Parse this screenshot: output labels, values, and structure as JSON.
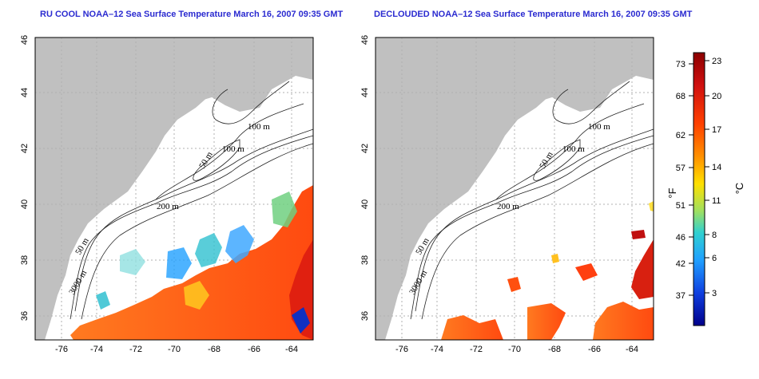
{
  "panels": [
    {
      "title": "RU COOL NOAA–12 Sea Surface Temperature March 16, 2007 09:35 GMT",
      "contour_labels": [
        "100 m",
        "100 m",
        "50 m",
        "200 m",
        "50 m",
        "3000 m"
      ]
    },
    {
      "title": "DECLOUDED NOAA–12 Sea Surface Temperature March 16, 2007 09:35 GMT",
      "contour_labels": [
        "100 m",
        "100 m",
        "50 m",
        "200 m",
        "50 m",
        "3000 m"
      ]
    }
  ],
  "axes": {
    "x_ticks": [
      "-76",
      "-74",
      "-72",
      "-70",
      "-68",
      "-66",
      "-64"
    ],
    "y_ticks": [
      "36",
      "38",
      "40",
      "42",
      "44",
      "46"
    ]
  },
  "colorbar": {
    "f_label": "°F",
    "c_label": "°C",
    "f_ticks": [
      "73",
      "68",
      "62",
      "57",
      "51",
      "46",
      "42",
      "37"
    ],
    "c_ticks": [
      "23",
      "20",
      "17",
      "14",
      "11",
      "8",
      "6",
      "3"
    ],
    "colors": [
      "#8b0000",
      "#d01010",
      "#ff4000",
      "#ff9000",
      "#ffe000",
      "#a0e060",
      "#30d0d0",
      "#20a0ff",
      "#1040e0",
      "#00008b"
    ]
  },
  "colors": {
    "land": "#c0c0c0",
    "ocean": "#ffffff",
    "title": "#2b2bd0"
  }
}
